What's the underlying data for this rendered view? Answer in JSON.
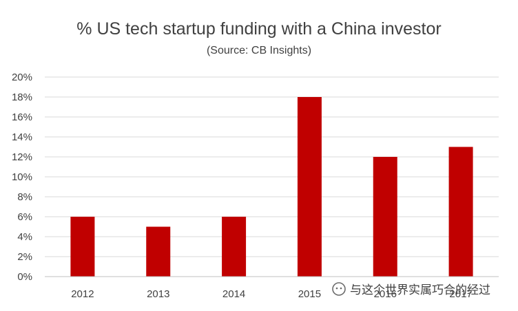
{
  "chart_data": {
    "type": "bar",
    "title": "% US tech startup funding with a China investor",
    "subtitle": "(Source: CB Insights)",
    "categories": [
      "2012",
      "2013",
      "2014",
      "2015",
      "2016",
      "2017"
    ],
    "values": [
      6,
      5,
      6,
      18,
      12,
      13
    ],
    "y_ticks": [
      "0%",
      "2%",
      "4%",
      "6%",
      "8%",
      "10%",
      "12%",
      "14%",
      "16%",
      "18%",
      "20%"
    ],
    "ylim": [
      0,
      20
    ],
    "y_step": 2,
    "grid": true,
    "legend": "none",
    "bar_color": "#c00000"
  },
  "watermark": {
    "text": "与这个世界实属巧合的经过",
    "icon": "wechat-icon"
  }
}
